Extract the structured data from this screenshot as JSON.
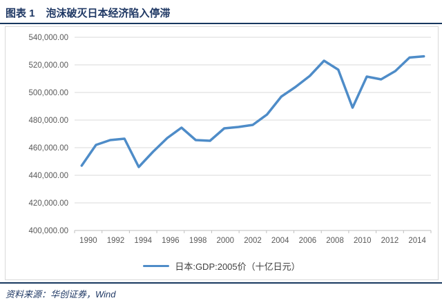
{
  "header": {
    "label": "图表 1",
    "title": "泡沫破灭日本经济陷入停滞"
  },
  "legend": {
    "label": "日本:GDP:2005价（十亿日元）"
  },
  "source": {
    "text": "资料来源：华创证券，Wind"
  },
  "colors": {
    "navy_text": "#1F3864",
    "rule_navy": "#17375E",
    "line_blue": "#4E8CC8",
    "gridline": "#D9D9D9",
    "axis": "#BFBFBF",
    "axis_text": "#595959",
    "legend_text": "#404040"
  },
  "chart_data": {
    "type": "line",
    "title": "泡沫破灭日本经济陷入停滞",
    "x": [
      1990,
      1991,
      1992,
      1993,
      1994,
      1995,
      1996,
      1997,
      1998,
      1999,
      2000,
      2001,
      2002,
      2003,
      2004,
      2005,
      2006,
      2007,
      2008,
      2009,
      2010,
      2011,
      2012,
      2013,
      2014
    ],
    "series": [
      {
        "name": "日本:GDP:2005价（十亿日元）",
        "values": [
          447000,
          462000,
          465500,
          466500,
          446000,
          457000,
          467000,
          474500,
          465500,
          465000,
          474000,
          475000,
          476500,
          484000,
          497000,
          504000,
          512000,
          523000,
          516500,
          489000,
          511500,
          509500,
          515500,
          525300,
          526200
        ]
      }
    ],
    "ylim": [
      400000,
      540000
    ],
    "ytick_step": 20000,
    "ytick_labels": [
      "400,000.00",
      "420,000.00",
      "440,000.00",
      "460,000.00",
      "480,000.00",
      "500,000.00",
      "520,000.00",
      "540,000.00"
    ],
    "xtick_labels": [
      "1990",
      "1992",
      "1994",
      "1996",
      "1998",
      "2000",
      "2002",
      "2004",
      "2006",
      "2008",
      "2010",
      "2012",
      "2014"
    ],
    "grid": true,
    "legend_position": "bottom"
  }
}
